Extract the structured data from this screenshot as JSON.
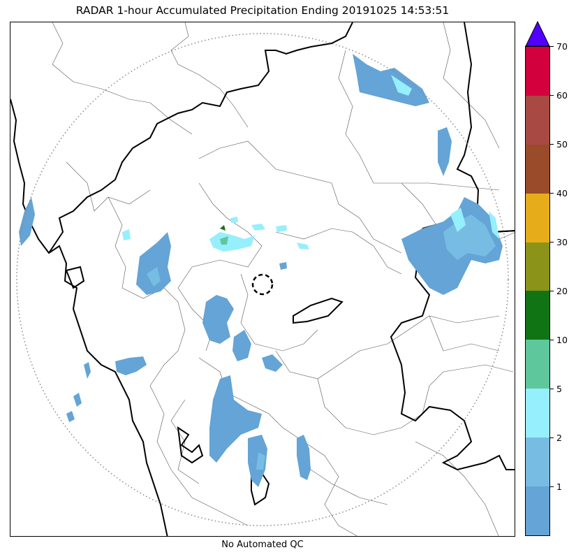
{
  "title": "RADAR 1-hour Accumulated Precipitation Ending 20191025 14:53:51",
  "caption": "No Automated QC",
  "colorbar": {
    "levels": [
      {
        "label": "",
        "color": "#64a4d6"
      },
      {
        "label": "1",
        "color": "#77bde3"
      },
      {
        "label": "2",
        "color": "#96effd"
      },
      {
        "label": "5",
        "color": "#5fc79c"
      },
      {
        "label": "10",
        "color": "#107415"
      },
      {
        "label": "20",
        "color": "#8b9318"
      },
      {
        "label": "30",
        "color": "#e6ac1a"
      },
      {
        "label": "40",
        "color": "#9a4b2a"
      },
      {
        "label": "50",
        "color": "#a84a43"
      },
      {
        "label": "60",
        "color": "#d3003e"
      },
      {
        "label": "70",
        "color": "#5100ff"
      }
    ],
    "extend_color": "#5100ff"
  },
  "colors": {
    "rain_light": "#64a4d6",
    "rain_1": "#77bde3",
    "rain_2": "#96effd",
    "rain_5": "#5fc79c",
    "rain_10": "#107415",
    "border_major": "#000000",
    "border_minor": "#555555",
    "range_ring": "#888888"
  }
}
